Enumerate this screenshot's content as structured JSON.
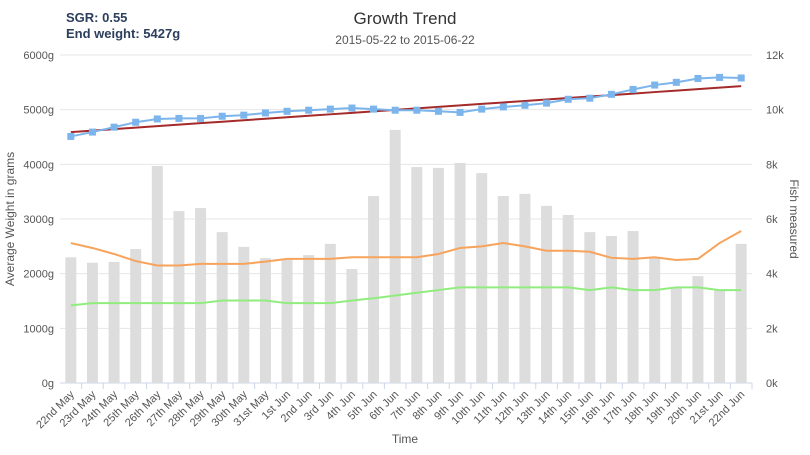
{
  "chart_data": {
    "type": "combo",
    "title": "Growth Trend",
    "subtitle": "2015-05-22 to 2015-06-22",
    "annotations": [
      "SGR: 0.55",
      "End weight: 5427g"
    ],
    "x_label": "Time",
    "y_label": "Average Weight in grams",
    "y2_label": "Fish measured",
    "categories": [
      "22nd May",
      "23rd May",
      "24th May",
      "25th May",
      "26th May",
      "27th May",
      "28th May",
      "29th May",
      "30th May",
      "31st May",
      "1st Jun",
      "2nd Jun",
      "3rd Jun",
      "4th Jun",
      "5th Jun",
      "6th Jun",
      "7th Jun",
      "8th Jun",
      "9th Jun",
      "10th Jun",
      "11th Jun",
      "12th Jun",
      "13th Jun",
      "14th Jun",
      "15th Jun",
      "16th Jun",
      "17th Jun",
      "18th Jun",
      "19th Jun",
      "20th Jun",
      "21st Jun",
      "22nd Jun"
    ],
    "ylim": [
      0,
      6000
    ],
    "yticks": [
      {
        "value": 0,
        "label": "0g"
      },
      {
        "value": 1000,
        "label": "1000g"
      },
      {
        "value": 2000,
        "label": "2000g"
      },
      {
        "value": 3000,
        "label": "3000g"
      },
      {
        "value": 4000,
        "label": "4000g"
      },
      {
        "value": 5000,
        "label": "5000g"
      },
      {
        "value": 6000,
        "label": "6000g"
      }
    ],
    "y2lim": [
      0,
      12000
    ],
    "y2ticks": [
      {
        "value": 0,
        "label": "0k"
      },
      {
        "value": 2000,
        "label": "2k"
      },
      {
        "value": 4000,
        "label": "4k"
      },
      {
        "value": 6000,
        "label": "6k"
      },
      {
        "value": 8000,
        "label": "8k"
      },
      {
        "value": 10000,
        "label": "10k"
      },
      {
        "value": 12000,
        "label": "12k"
      }
    ],
    "grid": true,
    "series": [
      {
        "kind": "bar",
        "axis": "y2",
        "color": "#dddddd",
        "values": [
          4600,
          4400,
          4430,
          4900,
          7940,
          6290,
          6400,
          5520,
          4980,
          4570,
          4500,
          4680,
          5090,
          4170,
          6840,
          9260,
          7900,
          7870,
          8050,
          7680,
          6840,
          6920,
          6480,
          6150,
          5520,
          5380,
          5560,
          4570,
          3480,
          3910,
          3400,
          5090
        ]
      },
      {
        "kind": "line",
        "color": "#f7a35c",
        "values": [
          2560,
          2470,
          2360,
          2230,
          2150,
          2150,
          2180,
          2180,
          2180,
          2220,
          2270,
          2270,
          2270,
          2300,
          2300,
          2300,
          2300,
          2360,
          2470,
          2500,
          2560,
          2500,
          2420,
          2420,
          2400,
          2290,
          2270,
          2300,
          2250,
          2270,
          2560,
          2780
        ]
      },
      {
        "kind": "line",
        "color": "#90ed7d",
        "values": [
          1420,
          1460,
          1460,
          1460,
          1460,
          1460,
          1460,
          1510,
          1510,
          1510,
          1460,
          1460,
          1460,
          1510,
          1550,
          1600,
          1650,
          1700,
          1750,
          1750,
          1750,
          1750,
          1750,
          1750,
          1700,
          1750,
          1700,
          1700,
          1750,
          1750,
          1700,
          1700
        ]
      },
      {
        "kind": "line",
        "color": "#a52a2a",
        "values": [
          4590,
          4617,
          4644,
          4671,
          4698,
          4726,
          4753,
          4780,
          4807,
          4834,
          4861,
          4888,
          4915,
          4942,
          4969,
          4996,
          5024,
          5051,
          5078,
          5105,
          5132,
          5159,
          5186,
          5213,
          5240,
          5267,
          5294,
          5322,
          5349,
          5376,
          5403,
          5430
        ]
      },
      {
        "kind": "line",
        "marker": "square",
        "color": "#7cb5ec",
        "values": [
          4510,
          4590,
          4680,
          4770,
          4830,
          4840,
          4840,
          4880,
          4900,
          4940,
          4970,
          4990,
          5010,
          5030,
          5010,
          4990,
          4990,
          4970,
          4950,
          5010,
          5050,
          5080,
          5120,
          5190,
          5210,
          5280,
          5370,
          5450,
          5500,
          5570,
          5590,
          5580
        ]
      }
    ]
  }
}
